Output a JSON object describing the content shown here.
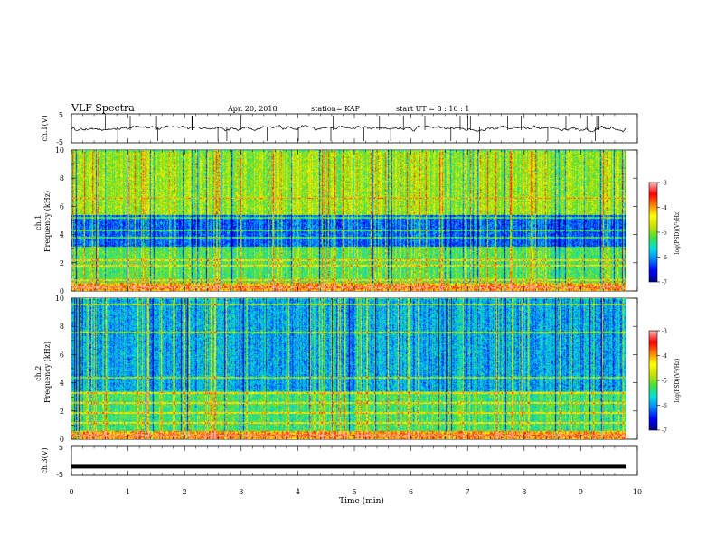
{
  "header": {
    "title": "VLF Spectra",
    "date": "Apr. 20, 2018",
    "station": "station= KAP",
    "start": "start  UT =   8 : 10 : 1"
  },
  "colors": {
    "background": "#ffffff",
    "colormap": [
      "#00008b",
      "#0000ff",
      "#0080ff",
      "#00e0e0",
      "#40e040",
      "#c8e000",
      "#ffff00",
      "#ff8000",
      "#ff0000",
      "#ffb0b0"
    ]
  },
  "chart_data": [
    {
      "type": "line",
      "ylabel": "ch.1(V)",
      "ylim": [
        -5,
        5
      ],
      "yticks": [
        "5",
        "-5"
      ],
      "xlim": [
        0,
        10
      ],
      "description_of_trace": "noisy waveform near 0 V with spikes"
    },
    {
      "type": "heatmap",
      "ylabel": "ch.1 Frequency (kHz)",
      "ylim": [
        0,
        10
      ],
      "yticks": [
        "0",
        "2",
        "4",
        "6",
        "8",
        "10"
      ],
      "xlim": [
        0,
        9.8
      ],
      "colorbar": {
        "label": "log(PSD)(V²/Hz)",
        "range": [
          -7,
          -3
        ],
        "ticks": [
          "-3",
          "-4",
          "-5",
          "-6",
          "-7"
        ]
      },
      "bands_khz": [
        {
          "low": 0.0,
          "high": 0.6,
          "level": -4.0
        },
        {
          "low": 0.6,
          "high": 3.2,
          "level": -5.2
        },
        {
          "low": 3.2,
          "high": 5.4,
          "level": -6.2
        },
        {
          "low": 5.4,
          "high": 10.0,
          "level": -4.9
        }
      ],
      "lines_khz": [
        0.3,
        0.8,
        1.8,
        2.2,
        3.8,
        4.3,
        5.2,
        6.6
      ]
    },
    {
      "type": "heatmap",
      "ylabel": "ch.2 Frequency (kHz)",
      "ylim": [
        0,
        10
      ],
      "yticks": [
        "0",
        "2",
        "4",
        "6",
        "8",
        "10"
      ],
      "xlim": [
        0,
        9.8
      ],
      "colorbar": {
        "label": "log(PSD)(V²/Hz)",
        "range": [
          -7,
          -3
        ],
        "ticks": [
          "-3",
          "-4",
          "-5",
          "-6",
          "-7"
        ]
      },
      "bands_khz": [
        {
          "low": 0.0,
          "high": 0.6,
          "level": -4.0
        },
        {
          "low": 0.6,
          "high": 3.4,
          "level": -5.3
        },
        {
          "low": 3.4,
          "high": 10.0,
          "level": -5.9
        }
      ],
      "lines_khz": [
        0.3,
        1.2,
        1.9,
        2.6,
        3.3,
        4.4,
        7.6,
        9.6
      ]
    },
    {
      "type": "line",
      "ylabel": "ch.3(V)",
      "ylim": [
        -5,
        5
      ],
      "yticks": [
        "5",
        "-5"
      ],
      "xlim": [
        0,
        10
      ],
      "value": -2
    }
  ],
  "xaxis": {
    "label": "Time  (min)",
    "ticks": [
      "0",
      "1",
      "2",
      "3",
      "4",
      "5",
      "6",
      "7",
      "8",
      "9",
      "10"
    ]
  }
}
